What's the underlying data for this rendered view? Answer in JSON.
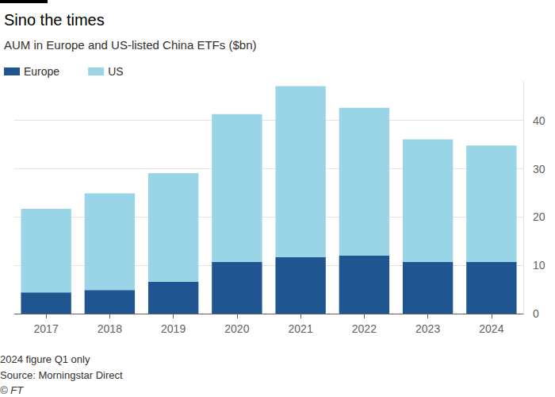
{
  "chart_data": {
    "type": "bar",
    "title": "Sino the times",
    "subtitle": "AUM in Europe and US-listed China ETFs ($bn)",
    "categories": [
      "2017",
      "2018",
      "2019",
      "2020",
      "2021",
      "2022",
      "2023",
      "2024"
    ],
    "series": [
      {
        "name": "Europe",
        "color": "#1f5591",
        "values": [
          4.4,
          4.9,
          6.6,
          10.7,
          11.7,
          12.0,
          10.7,
          10.7
        ]
      },
      {
        "name": "US",
        "color": "#99d5e6",
        "values": [
          17.3,
          20.0,
          22.5,
          30.6,
          35.4,
          30.6,
          25.4,
          24.1
        ]
      }
    ],
    "ylim": [
      0,
      48
    ],
    "yticks": [
      0,
      10,
      20,
      30,
      40
    ],
    "stacked": true,
    "grid": true,
    "legend": "top-left",
    "footnote": "2024 figure Q1 only",
    "source": "Source: Morningstar Direct",
    "credit": "© FT"
  }
}
